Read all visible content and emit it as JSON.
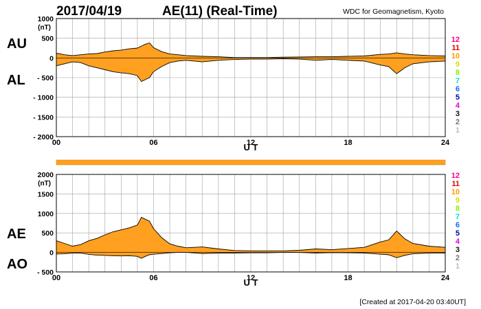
{
  "header": {
    "date": "2017/04/19",
    "title": "AE(11) (Real-Time)",
    "source": "WDC for Geomagnetism, Kyoto"
  },
  "footer": {
    "created": "[Created at 2017-04-20 03:40UT]"
  },
  "colors": {
    "fill": "#ffa020",
    "grid": "#a0a0a0",
    "line": "#000000",
    "hour_colors": [
      "#ff0080",
      "#e00000",
      "#ff9900",
      "#dddd00",
      "#88ee00",
      "#00e0e0",
      "#0070ff",
      "#0000aa",
      "#dd00dd",
      "#111111",
      "#777777",
      "#bbbbbb"
    ]
  },
  "chart_data": [
    {
      "id": "au-al",
      "type": "area",
      "title": "AU / AL",
      "xlabel": "U T",
      "ylabel": "(nT)",
      "xlim": [
        0,
        24
      ],
      "ylim": [
        -2000,
        1000
      ],
      "x_ticks": [
        "00",
        "06",
        "12",
        "18",
        "24"
      ],
      "y_ticks": [
        "1000",
        "500",
        "0",
        "- 500",
        "- 1000",
        "- 1500",
        "- 2000"
      ],
      "upper_label": "AU",
      "lower_label": "AL",
      "hour_labels": [
        "12",
        "11",
        "10",
        "9",
        "8",
        "7",
        "6",
        "5",
        "4",
        "3",
        "2",
        "1"
      ],
      "x": [
        0,
        0.5,
        1,
        1.5,
        2,
        2.5,
        3,
        3.5,
        4,
        4.5,
        5,
        5.25,
        5.5,
        5.75,
        6,
        6.5,
        7,
        7.5,
        8,
        9,
        10,
        11,
        12,
        13,
        14,
        15,
        16,
        17,
        18,
        19,
        20,
        20.5,
        21,
        21.5,
        22,
        23,
        24
      ],
      "series": [
        {
          "name": "AU",
          "values": [
            120,
            80,
            60,
            80,
            100,
            110,
            150,
            180,
            200,
            230,
            250,
            300,
            350,
            380,
            260,
            160,
            100,
            80,
            60,
            40,
            30,
            10,
            10,
            10,
            20,
            25,
            30,
            30,
            40,
            50,
            90,
            100,
            130,
            100,
            80,
            60,
            50
          ]
        },
        {
          "name": "AL",
          "values": [
            -200,
            -150,
            -100,
            -120,
            -200,
            -250,
            -300,
            -350,
            -380,
            -400,
            -450,
            -600,
            -550,
            -500,
            -350,
            -220,
            -120,
            -80,
            -60,
            -100,
            -60,
            -40,
            -30,
            -30,
            -20,
            -30,
            -60,
            -40,
            -60,
            -80,
            -180,
            -220,
            -400,
            -250,
            -150,
            -100,
            -80
          ]
        }
      ]
    },
    {
      "id": "ae-ao",
      "type": "area",
      "title": "AE / AO",
      "xlabel": "U T",
      "ylabel": "(nT)",
      "xlim": [
        0,
        24
      ],
      "ylim": [
        -500,
        2000
      ],
      "x_ticks": [
        "00",
        "06",
        "12",
        "18",
        "24"
      ],
      "y_ticks": [
        "2000",
        "1500",
        "1000",
        "500",
        "0",
        "- 500"
      ],
      "upper_label": "AE",
      "lower_label": "AO",
      "hour_labels": [
        "12",
        "11",
        "10",
        "9",
        "8",
        "7",
        "6",
        "5",
        "4",
        "3",
        "2",
        "1"
      ],
      "x": [
        0,
        0.5,
        1,
        1.5,
        2,
        2.5,
        3,
        3.5,
        4,
        4.5,
        5,
        5.25,
        5.5,
        5.75,
        6,
        6.5,
        7,
        7.5,
        8,
        9,
        10,
        11,
        12,
        13,
        14,
        15,
        16,
        17,
        18,
        19,
        20,
        20.5,
        21,
        21.5,
        22,
        23,
        24
      ],
      "series": [
        {
          "name": "AE",
          "values": [
            300,
            230,
            160,
            200,
            300,
            360,
            450,
            530,
            580,
            630,
            700,
            900,
            850,
            800,
            610,
            380,
            220,
            160,
            120,
            140,
            90,
            50,
            40,
            40,
            40,
            55,
            90,
            70,
            100,
            130,
            270,
            320,
            550,
            350,
            230,
            160,
            130
          ]
        },
        {
          "name": "AO",
          "values": [
            -40,
            -35,
            -20,
            -20,
            -50,
            -70,
            -75,
            -85,
            -90,
            -85,
            -100,
            -150,
            -100,
            -60,
            -45,
            -30,
            -10,
            0,
            0,
            -30,
            -15,
            -15,
            -10,
            -10,
            0,
            -2,
            -15,
            -5,
            -10,
            -15,
            -45,
            -60,
            -135,
            -75,
            -35,
            -20,
            -15
          ]
        }
      ]
    }
  ]
}
